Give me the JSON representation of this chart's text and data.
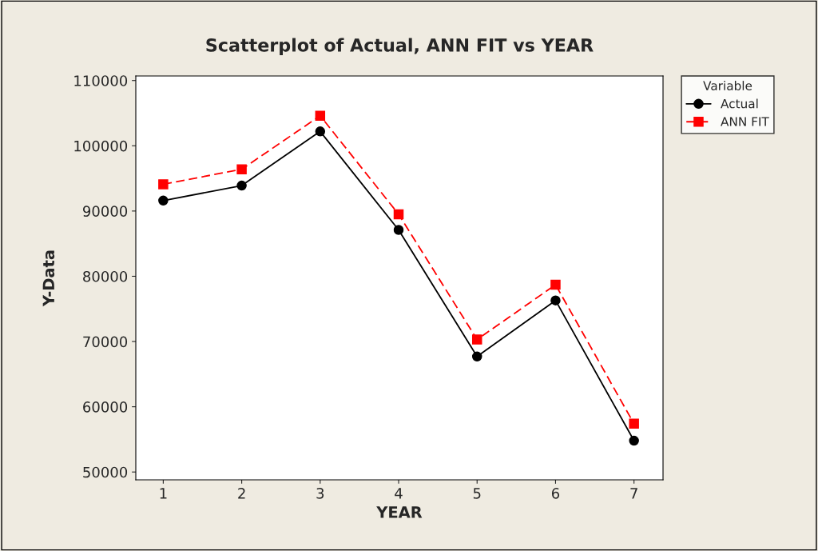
{
  "chart_data": {
    "type": "line",
    "title": "Scatterplot of Actual, ANN FIT vs YEAR",
    "xlabel": "YEAR",
    "ylabel": "Y-Data",
    "legend_title": "Variable",
    "x": [
      1,
      2,
      3,
      4,
      5,
      6,
      7
    ],
    "series": [
      {
        "name": "Actual",
        "color": "#000000",
        "marker": "circle",
        "line_style": "solid",
        "values": [
          91600,
          93900,
          102200,
          87100,
          67700,
          76300,
          54800
        ]
      },
      {
        "name": "ANN FIT",
        "color": "#ff0000",
        "marker": "square",
        "line_style": "dashed",
        "values": [
          94100,
          96400,
          104600,
          89500,
          70300,
          78700,
          57400
        ]
      }
    ],
    "xlim": [
      0.65,
      7.37
    ],
    "xticks": [
      1,
      2,
      3,
      4,
      5,
      6,
      7
    ],
    "ylim": [
      48800,
      110700
    ],
    "yticks": [
      50000,
      60000,
      70000,
      80000,
      90000,
      100000,
      110000
    ],
    "grid": false,
    "legend": "top right"
  }
}
